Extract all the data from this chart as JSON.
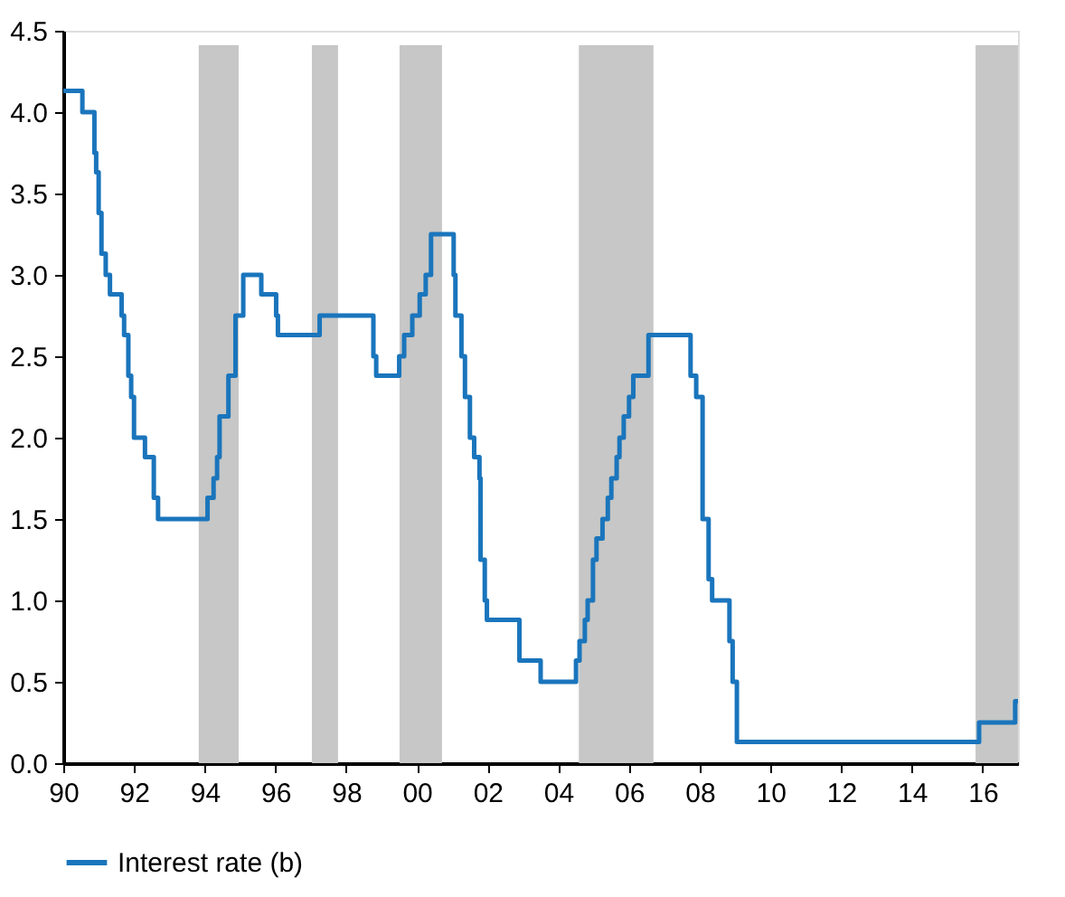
{
  "chart_data": {
    "type": "step",
    "legend": "bottom",
    "grid": false,
    "line_style": "solid",
    "marker": "none",
    "xlim": [
      1990,
      2017
    ],
    "ylim": [
      0,
      4.5
    ],
    "xticks": [
      {
        "value": 1990,
        "label": "90"
      },
      {
        "value": 1992,
        "label": "92"
      },
      {
        "value": 1994,
        "label": "94"
      },
      {
        "value": 1996,
        "label": "96"
      },
      {
        "value": 1998,
        "label": "98"
      },
      {
        "value": 2000,
        "label": "00"
      },
      {
        "value": 2002,
        "label": "02"
      },
      {
        "value": 2004,
        "label": "04"
      },
      {
        "value": 2006,
        "label": "06"
      },
      {
        "value": 2008,
        "label": "08"
      },
      {
        "value": 2010,
        "label": "10"
      },
      {
        "value": 2012,
        "label": "12"
      },
      {
        "value": 2014,
        "label": "14"
      },
      {
        "value": 2016,
        "label": "16"
      }
    ],
    "yticks": [
      {
        "value": 0,
        "label": "0.0"
      },
      0.5,
      {
        "value": 1,
        "label": "1.0"
      },
      1.5,
      {
        "value": 2,
        "label": "2.0"
      },
      2.5,
      {
        "value": 3,
        "label": "3.0"
      },
      3.5,
      {
        "value": 4,
        "label": "4.0"
      },
      4.5
    ],
    "bands": [
      {
        "axis": "x",
        "from": 1993.83,
        "to": 1994.96,
        "color": "#c6c7c6"
      },
      {
        "axis": "x",
        "from": 1997.03,
        "to": 1997.77,
        "color": "#c6c7c6"
      },
      {
        "axis": "x",
        "from": 1999.51,
        "to": 2000.71,
        "color": "#c6c7c6"
      },
      {
        "axis": "x",
        "from": 2004.58,
        "to": 2006.69,
        "color": "#c6c7c6"
      },
      {
        "axis": "x",
        "from": 2015.8,
        "to": 2017,
        "color": "#c6c7c6"
      }
    ],
    "series": [
      {
        "name": "Interest rate (b)",
        "color": "#1a75bc",
        "x": [
          1990,
          1990.54,
          1990.88,
          1990.93,
          1991.0,
          1991.08,
          1991.2,
          1991.32,
          1991.65,
          1991.72,
          1991.84,
          1991.92,
          1992.0,
          1992.31,
          1992.56,
          1992.68,
          1994.08,
          1994.25,
          1994.35,
          1994.42,
          1994.67,
          1994.87,
          1995.09,
          1995.6,
          1996.02,
          1996.07,
          1997.25,
          1998.77,
          1998.85,
          1999.5,
          1999.64,
          1999.87,
          2000.08,
          2000.25,
          2000.4,
          2001.04,
          2001.09,
          2001.26,
          2001.36,
          2001.5,
          2001.62,
          2001.77,
          2001.8,
          2001.92,
          2001.98,
          2002.9,
          2003.5,
          2004.5,
          2004.6,
          2004.75,
          2004.83,
          2004.98,
          2005.08,
          2005.25,
          2005.4,
          2005.5,
          2005.65,
          2005.73,
          2005.85,
          2006.0,
          2006.12,
          2006.55,
          2007.74,
          2007.9,
          2008.08,
          2008.25,
          2008.35,
          2008.84,
          2008.93,
          2009.05,
          2015.9,
          2016.92,
          2017
        ],
        "values": [
          4.13,
          4.0,
          3.75,
          3.63,
          3.38,
          3.13,
          3.0,
          2.88,
          2.75,
          2.63,
          2.38,
          2.25,
          2.0,
          1.88,
          1.63,
          1.5,
          1.63,
          1.75,
          1.88,
          2.13,
          2.38,
          2.75,
          3.0,
          2.88,
          2.75,
          2.63,
          2.75,
          2.5,
          2.38,
          2.5,
          2.63,
          2.75,
          2.88,
          3.0,
          3.25,
          3.0,
          2.75,
          2.5,
          2.25,
          2.0,
          1.88,
          1.75,
          1.25,
          1.0,
          0.88,
          0.63,
          0.5,
          0.63,
          0.75,
          0.88,
          1.0,
          1.25,
          1.38,
          1.5,
          1.63,
          1.75,
          1.88,
          2.0,
          2.13,
          2.25,
          2.38,
          2.63,
          2.38,
          2.25,
          1.5,
          1.13,
          1.0,
          0.75,
          0.5,
          0.13,
          0.25,
          0.38,
          0.38
        ]
      }
    ]
  }
}
